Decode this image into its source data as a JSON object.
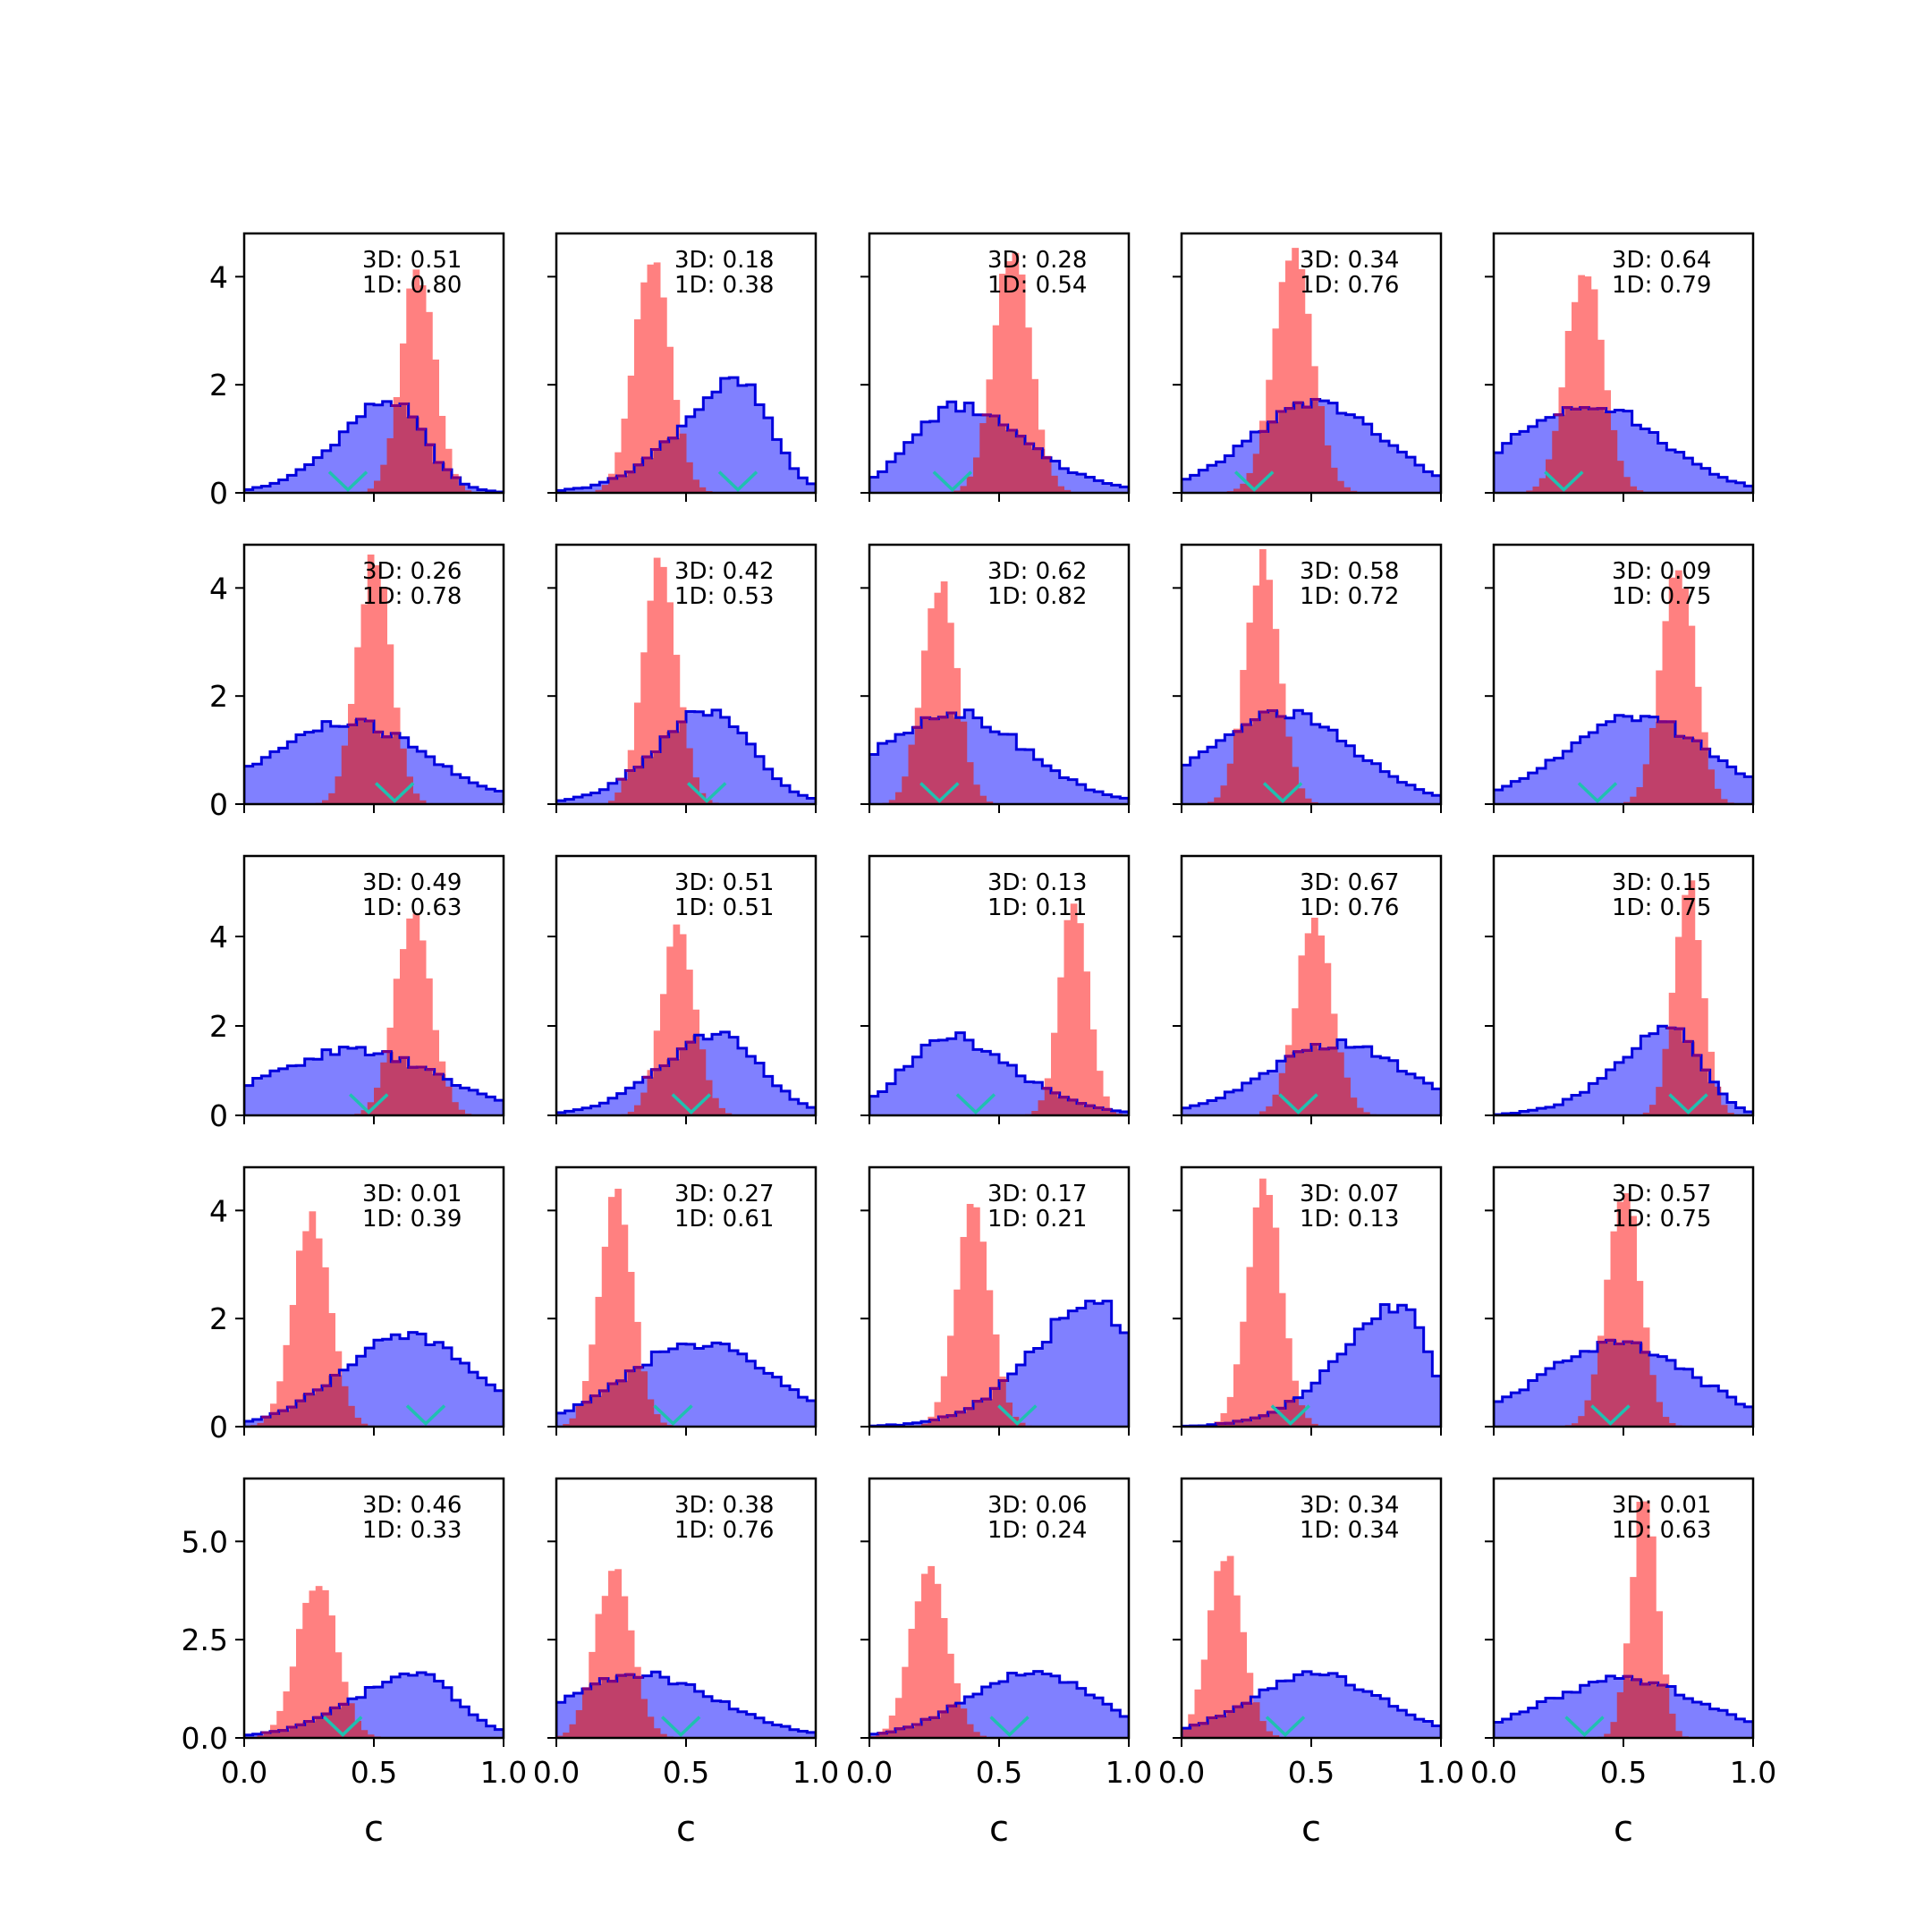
{
  "chart_data": {
    "type": "histogram-grid",
    "rows": 5,
    "cols": 5,
    "xlabel": "c",
    "xlim": [
      0.0,
      1.0
    ],
    "x_tick_values": [
      0.0,
      0.5,
      1.0
    ],
    "x_tick_labels": [
      "0.0",
      "0.5",
      "1.0"
    ],
    "row_ylim": [
      [
        0,
        4.8
      ],
      [
        0,
        4.8
      ],
      [
        0,
        5.8
      ],
      [
        0,
        4.8
      ],
      [
        0,
        6.6
      ]
    ],
    "row_y_tick_values": [
      [
        0,
        2,
        4
      ],
      [
        0,
        2,
        4
      ],
      [
        0,
        2,
        4
      ],
      [
        0,
        2,
        4
      ],
      [
        0,
        2.5,
        5.0
      ]
    ],
    "row_y_tick_labels": [
      [
        "0",
        "2",
        "4"
      ],
      [
        "0",
        "2",
        "4"
      ],
      [
        "0",
        "2",
        "4"
      ],
      [
        "0",
        "2",
        "4"
      ],
      [
        "0.0",
        "2.5",
        "5.0"
      ]
    ],
    "colors": {
      "blue_fill": "#8080ff",
      "blue_edge": "#0000dd",
      "red_fill": "#ff8080",
      "overlap_fill": "#c0406a",
      "overlap_edge": "#800080",
      "marker": "#20c0b0"
    },
    "panels": [
      {
        "row": 0,
        "col": 0,
        "label_3d": "3D: 0.51",
        "label_1d": "1D: 0.80",
        "blue": {
          "type": "skewnorm",
          "mu": 0.68,
          "sigma": 0.25,
          "peak": 1.7,
          "skew": -2.0
        },
        "red": {
          "mu": 0.67,
          "sigma": 0.065,
          "peak": 4.1
        },
        "marker": 0.4
      },
      {
        "row": 0,
        "col": 1,
        "label_3d": "3D: 0.18",
        "label_1d": "1D: 0.38",
        "blue": {
          "type": "skewnorm",
          "mu": 0.82,
          "sigma": 0.28,
          "peak": 2.05,
          "skew": -2.5
        },
        "red": {
          "mu": 0.37,
          "sigma": 0.07,
          "peak": 4.3
        },
        "marker": 0.7
      },
      {
        "row": 0,
        "col": 2,
        "label_3d": "3D: 0.28",
        "label_1d": "1D: 0.54",
        "blue": {
          "type": "skewnorm",
          "mu": 0.18,
          "sigma": 0.33,
          "peak": 1.6,
          "skew": 2.0
        },
        "red": {
          "mu": 0.55,
          "sigma": 0.07,
          "peak": 4.4
        },
        "marker": 0.32
      },
      {
        "row": 0,
        "col": 3,
        "label_3d": "3D: 0.34",
        "label_1d": "1D: 0.76",
        "blue": {
          "type": "norm",
          "mu": 0.52,
          "sigma": 0.26,
          "peak": 1.65
        },
        "red": {
          "mu": 0.43,
          "sigma": 0.075,
          "peak": 4.4
        },
        "marker": 0.28
      },
      {
        "row": 0,
        "col": 4,
        "label_3d": "3D: 0.64",
        "label_1d": "1D: 0.79",
        "blue": {
          "type": "norm",
          "mu": 0.36,
          "sigma": 0.28,
          "peak": 1.65
        },
        "red": {
          "mu": 0.35,
          "sigma": 0.07,
          "peak": 4.2
        },
        "marker": 0.27
      },
      {
        "row": 1,
        "col": 0,
        "label_3d": "3D: 0.26",
        "label_1d": "1D: 0.78",
        "blue": {
          "type": "norm",
          "mu": 0.4,
          "sigma": 0.3,
          "peak": 1.5
        },
        "red": {
          "mu": 0.5,
          "sigma": 0.065,
          "peak": 4.5
        },
        "marker": 0.58
      },
      {
        "row": 1,
        "col": 1,
        "label_3d": "3D: 0.42",
        "label_1d": "1D: 0.53",
        "blue": {
          "type": "skewnorm",
          "mu": 0.72,
          "sigma": 0.26,
          "peak": 1.7,
          "skew": -1.5
        },
        "red": {
          "mu": 0.4,
          "sigma": 0.065,
          "peak": 4.5
        },
        "marker": 0.58
      },
      {
        "row": 1,
        "col": 2,
        "label_3d": "3D: 0.62",
        "label_1d": "1D: 0.82",
        "blue": {
          "type": "norm",
          "mu": 0.32,
          "sigma": 0.28,
          "peak": 1.7
        },
        "red": {
          "mu": 0.27,
          "sigma": 0.065,
          "peak": 4.1
        },
        "marker": 0.27
      },
      {
        "row": 1,
        "col": 3,
        "label_3d": "3D: 0.58",
        "label_1d": "1D: 0.72",
        "blue": {
          "type": "norm",
          "mu": 0.38,
          "sigma": 0.28,
          "peak": 1.7
        },
        "red": {
          "mu": 0.31,
          "sigma": 0.065,
          "peak": 4.5
        },
        "marker": 0.39
      },
      {
        "row": 1,
        "col": 4,
        "label_3d": "3D: 0.09",
        "label_1d": "1D: 0.75",
        "blue": {
          "type": "norm",
          "mu": 0.55,
          "sigma": 0.28,
          "peak": 1.6
        },
        "red": {
          "mu": 0.71,
          "sigma": 0.065,
          "peak": 4.4
        },
        "marker": 0.4
      },
      {
        "row": 2,
        "col": 0,
        "label_3d": "3D: 0.49",
        "label_1d": "1D: 0.63",
        "blue": {
          "type": "norm",
          "mu": 0.42,
          "sigma": 0.33,
          "peak": 1.45
        },
        "red": {
          "mu": 0.65,
          "sigma": 0.07,
          "peak": 4.3
        },
        "marker": 0.48
      },
      {
        "row": 2,
        "col": 1,
        "label_3d": "3D: 0.51",
        "label_1d": "1D: 0.51",
        "blue": {
          "type": "skewnorm",
          "mu": 0.75,
          "sigma": 0.27,
          "peak": 1.8,
          "skew": -1.5
        },
        "red": {
          "mu": 0.47,
          "sigma": 0.065,
          "peak": 4.1
        },
        "marker": 0.52
      },
      {
        "row": 2,
        "col": 2,
        "label_3d": "3D: 0.13",
        "label_1d": "1D: 0.11",
        "blue": {
          "type": "skewnorm",
          "mu": 0.15,
          "sigma": 0.32,
          "peak": 1.75,
          "skew": 2.0
        },
        "red": {
          "mu": 0.79,
          "sigma": 0.055,
          "peak": 4.8
        },
        "marker": 0.41
      },
      {
        "row": 2,
        "col": 3,
        "label_3d": "3D: 0.67",
        "label_1d": "1D: 0.76",
        "blue": {
          "type": "norm",
          "mu": 0.6,
          "sigma": 0.27,
          "peak": 1.6
        },
        "red": {
          "mu": 0.51,
          "sigma": 0.07,
          "peak": 4.3
        },
        "marker": 0.45
      },
      {
        "row": 2,
        "col": 4,
        "label_3d": "3D: 0.15",
        "label_1d": "1D: 0.75",
        "blue": {
          "type": "skewnorm",
          "mu": 0.8,
          "sigma": 0.26,
          "peak": 1.9,
          "skew": -2.5
        },
        "red": {
          "mu": 0.75,
          "sigma": 0.055,
          "peak": 5.0
        },
        "marker": 0.75
      },
      {
        "row": 3,
        "col": 0,
        "label_3d": "3D: 0.01",
        "label_1d": "1D: 0.39",
        "blue": {
          "type": "norm",
          "mu": 0.63,
          "sigma": 0.26,
          "peak": 1.65
        },
        "red": {
          "mu": 0.26,
          "sigma": 0.07,
          "peak": 3.9
        },
        "marker": 0.7
      },
      {
        "row": 3,
        "col": 1,
        "label_3d": "3D: 0.27",
        "label_1d": "1D: 0.61",
        "blue": {
          "type": "norm",
          "mu": 0.55,
          "sigma": 0.28,
          "peak": 1.55
        },
        "red": {
          "mu": 0.23,
          "sigma": 0.065,
          "peak": 4.2
        },
        "marker": 0.45
      },
      {
        "row": 3,
        "col": 2,
        "label_3d": "3D: 0.17",
        "label_1d": "1D: 0.21",
        "blue": {
          "type": "skewnorm",
          "mu": 1.0,
          "sigma": 0.3,
          "peak": 2.4,
          "skew": -3.0
        },
        "red": {
          "mu": 0.4,
          "sigma": 0.065,
          "peak": 4.1
        },
        "marker": 0.57
      },
      {
        "row": 3,
        "col": 3,
        "label_3d": "3D: 0.07",
        "label_1d": "1D: 0.13",
        "blue": {
          "type": "skewnorm",
          "mu": 0.95,
          "sigma": 0.28,
          "peak": 2.25,
          "skew": -3.0
        },
        "red": {
          "mu": 0.32,
          "sigma": 0.065,
          "peak": 4.4
        },
        "marker": 0.42
      },
      {
        "row": 3,
        "col": 4,
        "label_3d": "3D: 0.57",
        "label_1d": "1D: 0.75",
        "blue": {
          "type": "norm",
          "mu": 0.48,
          "sigma": 0.3,
          "peak": 1.5
        },
        "red": {
          "mu": 0.5,
          "sigma": 0.065,
          "peak": 4.3
        },
        "marker": 0.45
      },
      {
        "row": 4,
        "col": 0,
        "label_3d": "3D: 0.46",
        "label_1d": "1D: 0.33",
        "blue": {
          "type": "skewnorm",
          "mu": 0.8,
          "sigma": 0.3,
          "peak": 1.65,
          "skew": -2.0
        },
        "red": {
          "mu": 0.28,
          "sigma": 0.075,
          "peak": 4.0
        },
        "marker": 0.38
      },
      {
        "row": 4,
        "col": 1,
        "label_3d": "3D: 0.38",
        "label_1d": "1D: 0.76",
        "blue": {
          "type": "norm",
          "mu": 0.32,
          "sigma": 0.3,
          "peak": 1.6
        },
        "red": {
          "mu": 0.22,
          "sigma": 0.07,
          "peak": 4.2
        },
        "marker": 0.48
      },
      {
        "row": 4,
        "col": 2,
        "label_3d": "3D: 0.06",
        "label_1d": "1D: 0.24",
        "blue": {
          "type": "norm",
          "mu": 0.62,
          "sigma": 0.25,
          "peak": 1.65
        },
        "red": {
          "mu": 0.23,
          "sigma": 0.07,
          "peak": 4.3
        },
        "marker": 0.54
      },
      {
        "row": 4,
        "col": 3,
        "label_3d": "3D: 0.34",
        "label_1d": "1D: 0.34",
        "blue": {
          "type": "norm",
          "mu": 0.52,
          "sigma": 0.26,
          "peak": 1.6
        },
        "red": {
          "mu": 0.17,
          "sigma": 0.065,
          "peak": 4.6
        },
        "marker": 0.4
      },
      {
        "row": 4,
        "col": 4,
        "label_3d": "3D: 0.01",
        "label_1d": "1D: 0.63",
        "blue": {
          "type": "norm",
          "mu": 0.5,
          "sigma": 0.3,
          "peak": 1.5
        },
        "red": {
          "mu": 0.58,
          "sigma": 0.05,
          "peak": 6.1
        },
        "marker": 0.35
      }
    ]
  }
}
